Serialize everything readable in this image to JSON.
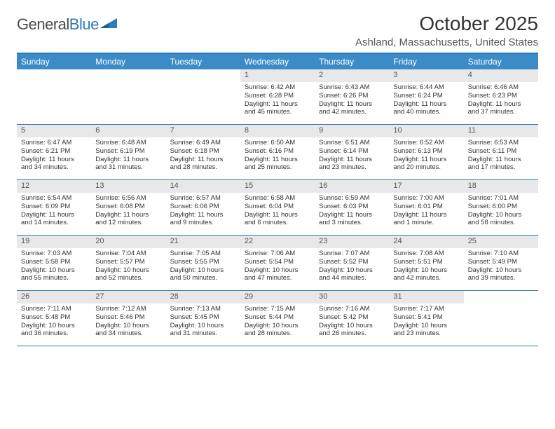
{
  "logo": {
    "text1": "General",
    "text2": "Blue"
  },
  "title": "October 2025",
  "location": "Ashland, Massachusetts, United States",
  "colors": {
    "header_bg": "#3b8bc8",
    "header_text": "#ffffff",
    "border": "#2f7ab8",
    "num_bg": "#e8e8e8",
    "num_text": "#555555",
    "body_text": "#333333",
    "logo_gray": "#6d6d6d",
    "logo_blue": "#2f7ab8"
  },
  "typography": {
    "title_fontsize": 28,
    "location_fontsize": 15,
    "dayhead_fontsize": 12,
    "daynum_fontsize": 11,
    "cell_fontsize": 9.5
  },
  "dayNames": [
    "Sunday",
    "Monday",
    "Tuesday",
    "Wednesday",
    "Thursday",
    "Friday",
    "Saturday"
  ],
  "weeks": [
    [
      {
        "n": "",
        "sr": "",
        "ss": "",
        "dl": ""
      },
      {
        "n": "",
        "sr": "",
        "ss": "",
        "dl": ""
      },
      {
        "n": "",
        "sr": "",
        "ss": "",
        "dl": ""
      },
      {
        "n": "1",
        "sr": "6:42 AM",
        "ss": "6:28 PM",
        "dl": "11 hours and 45 minutes."
      },
      {
        "n": "2",
        "sr": "6:43 AM",
        "ss": "6:26 PM",
        "dl": "11 hours and 42 minutes."
      },
      {
        "n": "3",
        "sr": "6:44 AM",
        "ss": "6:24 PM",
        "dl": "11 hours and 40 minutes."
      },
      {
        "n": "4",
        "sr": "6:46 AM",
        "ss": "6:23 PM",
        "dl": "11 hours and 37 minutes."
      }
    ],
    [
      {
        "n": "5",
        "sr": "6:47 AM",
        "ss": "6:21 PM",
        "dl": "11 hours and 34 minutes."
      },
      {
        "n": "6",
        "sr": "6:48 AM",
        "ss": "6:19 PM",
        "dl": "11 hours and 31 minutes."
      },
      {
        "n": "7",
        "sr": "6:49 AM",
        "ss": "6:18 PM",
        "dl": "11 hours and 28 minutes."
      },
      {
        "n": "8",
        "sr": "6:50 AM",
        "ss": "6:16 PM",
        "dl": "11 hours and 25 minutes."
      },
      {
        "n": "9",
        "sr": "6:51 AM",
        "ss": "6:14 PM",
        "dl": "11 hours and 23 minutes."
      },
      {
        "n": "10",
        "sr": "6:52 AM",
        "ss": "6:13 PM",
        "dl": "11 hours and 20 minutes."
      },
      {
        "n": "11",
        "sr": "6:53 AM",
        "ss": "6:11 PM",
        "dl": "11 hours and 17 minutes."
      }
    ],
    [
      {
        "n": "12",
        "sr": "6:54 AM",
        "ss": "6:09 PM",
        "dl": "11 hours and 14 minutes."
      },
      {
        "n": "13",
        "sr": "6:56 AM",
        "ss": "6:08 PM",
        "dl": "11 hours and 12 minutes."
      },
      {
        "n": "14",
        "sr": "6:57 AM",
        "ss": "6:06 PM",
        "dl": "11 hours and 9 minutes."
      },
      {
        "n": "15",
        "sr": "6:58 AM",
        "ss": "6:04 PM",
        "dl": "11 hours and 6 minutes."
      },
      {
        "n": "16",
        "sr": "6:59 AM",
        "ss": "6:03 PM",
        "dl": "11 hours and 3 minutes."
      },
      {
        "n": "17",
        "sr": "7:00 AM",
        "ss": "6:01 PM",
        "dl": "11 hours and 1 minute."
      },
      {
        "n": "18",
        "sr": "7:01 AM",
        "ss": "6:00 PM",
        "dl": "10 hours and 58 minutes."
      }
    ],
    [
      {
        "n": "19",
        "sr": "7:03 AM",
        "ss": "5:58 PM",
        "dl": "10 hours and 55 minutes."
      },
      {
        "n": "20",
        "sr": "7:04 AM",
        "ss": "5:57 PM",
        "dl": "10 hours and 52 minutes."
      },
      {
        "n": "21",
        "sr": "7:05 AM",
        "ss": "5:55 PM",
        "dl": "10 hours and 50 minutes."
      },
      {
        "n": "22",
        "sr": "7:06 AM",
        "ss": "5:54 PM",
        "dl": "10 hours and 47 minutes."
      },
      {
        "n": "23",
        "sr": "7:07 AM",
        "ss": "5:52 PM",
        "dl": "10 hours and 44 minutes."
      },
      {
        "n": "24",
        "sr": "7:08 AM",
        "ss": "5:51 PM",
        "dl": "10 hours and 42 minutes."
      },
      {
        "n": "25",
        "sr": "7:10 AM",
        "ss": "5:49 PM",
        "dl": "10 hours and 39 minutes."
      }
    ],
    [
      {
        "n": "26",
        "sr": "7:11 AM",
        "ss": "5:48 PM",
        "dl": "10 hours and 36 minutes."
      },
      {
        "n": "27",
        "sr": "7:12 AM",
        "ss": "5:46 PM",
        "dl": "10 hours and 34 minutes."
      },
      {
        "n": "28",
        "sr": "7:13 AM",
        "ss": "5:45 PM",
        "dl": "10 hours and 31 minutes."
      },
      {
        "n": "29",
        "sr": "7:15 AM",
        "ss": "5:44 PM",
        "dl": "10 hours and 28 minutes."
      },
      {
        "n": "30",
        "sr": "7:16 AM",
        "ss": "5:42 PM",
        "dl": "10 hours and 26 minutes."
      },
      {
        "n": "31",
        "sr": "7:17 AM",
        "ss": "5:41 PM",
        "dl": "10 hours and 23 minutes."
      },
      {
        "n": "",
        "sr": "",
        "ss": "",
        "dl": ""
      }
    ]
  ],
  "labels": {
    "sunrise": "Sunrise:",
    "sunset": "Sunset:",
    "daylight": "Daylight:"
  }
}
